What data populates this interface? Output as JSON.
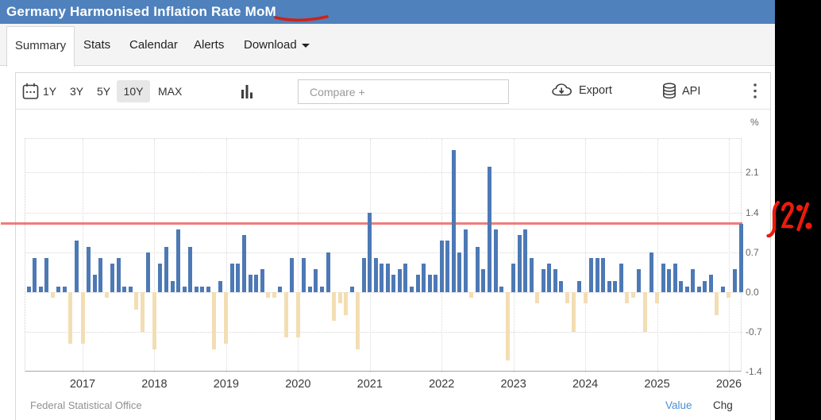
{
  "header": {
    "title": "Germany Harmonised Inflation Rate MoM"
  },
  "tabs": [
    {
      "label": "Summary"
    },
    {
      "label": "Stats"
    },
    {
      "label": "Calendar"
    },
    {
      "label": "Alerts"
    },
    {
      "label": "Download"
    }
  ],
  "toolbar": {
    "ranges": [
      {
        "label": "1Y"
      },
      {
        "label": "3Y"
      },
      {
        "label": "5Y"
      },
      {
        "label": "10Y"
      },
      {
        "label": "MAX"
      }
    ],
    "selected_range": "10Y",
    "compare_placeholder": "Compare +",
    "export_label": "Export",
    "api_label": "API"
  },
  "chart_data": {
    "type": "bar",
    "title": "Germany Harmonised Inflation Rate MoM",
    "unit": "%",
    "start_month": "2016-04",
    "values": [
      0.1,
      0.6,
      0.1,
      0.6,
      -0.1,
      0.1,
      0.1,
      -0.9,
      0.9,
      -0.9,
      0.8,
      0.3,
      0.6,
      -0.1,
      0.5,
      0.6,
      0.1,
      0.1,
      -0.3,
      -0.7,
      0.7,
      -1.0,
      0.5,
      0.8,
      0.2,
      1.1,
      0.1,
      0.8,
      0.1,
      0.1,
      0.1,
      -1.0,
      0.2,
      -0.9,
      0.5,
      0.5,
      1.0,
      0.3,
      0.3,
      0.4,
      -0.1,
      -0.1,
      0.1,
      -0.8,
      0.6,
      -0.8,
      0.6,
      0.1,
      0.4,
      0.1,
      0.7,
      -0.5,
      -0.2,
      -0.4,
      0.1,
      -1.0,
      0.6,
      1.4,
      0.6,
      0.5,
      0.5,
      0.3,
      0.4,
      0.5,
      0.1,
      0.3,
      0.5,
      0.3,
      0.3,
      0.9,
      0.9,
      2.5,
      0.7,
      1.1,
      -0.1,
      0.8,
      0.4,
      2.2,
      1.1,
      0.1,
      -1.2,
      0.5,
      1.0,
      1.1,
      0.6,
      -0.2,
      0.4,
      0.5,
      0.4,
      0.2,
      -0.2,
      -0.7,
      0.2,
      -0.2,
      0.6,
      0.6,
      0.6,
      0.2,
      0.2,
      0.5,
      -0.2,
      -0.1,
      0.4,
      -0.7,
      0.7,
      -0.2,
      0.5,
      0.4,
      0.5,
      0.2,
      0.1,
      0.4,
      0.1,
      0.2,
      0.3,
      -0.4,
      0.1,
      -0.1,
      0.4,
      1.2
    ],
    "year_ticks": [
      "2017",
      "2018",
      "2019",
      "2020",
      "2021",
      "2022",
      "2023",
      "2024",
      "2025",
      "2026"
    ],
    "yticks": [
      2.1,
      1.4,
      0.7,
      0.0,
      -0.7,
      -1.4
    ],
    "ylim": [
      -1.4,
      2.7
    ],
    "positive_color": "#4d79b5",
    "negative_color": "#f3deb3",
    "red_line_value": 1.2,
    "legend_position": "none",
    "grid": true
  },
  "annotations": {
    "handwritten_value": "1.2%",
    "underlined_word": "MoM",
    "red_line_note": "horizontal red line drawn at latest value 1.2%"
  },
  "footer": {
    "source": "Federal Statistical Office",
    "value_label": "Value",
    "chg_label": "Chg",
    "value_color": "#4a90d2"
  }
}
